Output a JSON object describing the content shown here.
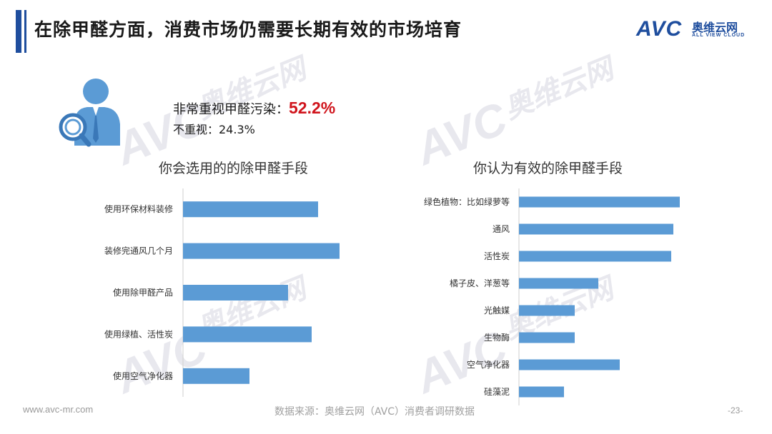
{
  "header": {
    "title": "在除甲醛方面，消费市场仍需要长期有效的市场培育"
  },
  "logo": {
    "brand": "AVC",
    "cn": "奥维云网",
    "en": "ALL VIEW CLOUD"
  },
  "stats": {
    "label1": "非常重视甲醛污染：",
    "value1": "52.2%",
    "label2": "不重视：24.3%"
  },
  "watermark": {
    "brand": "AVC",
    "cn": "奥维云网",
    "en": "ALL VIEW CLOUD"
  },
  "chart_data": [
    {
      "type": "bar",
      "orientation": "horizontal",
      "title": "你会选用的的除甲醛手段",
      "categories": [
        "使用环保材料装修",
        "装修完通风几个月",
        "使用除甲醛产品",
        "使用绿植、活性炭",
        "使用空气净化器"
      ],
      "values": [
        63,
        73,
        49,
        60,
        31
      ],
      "xlim": [
        0,
        80
      ],
      "color": "#5b9bd5",
      "grid": false
    },
    {
      "type": "bar",
      "orientation": "horizontal",
      "title": "你认为有效的除甲醛手段",
      "categories": [
        "绿色植物：比如绿萝等",
        "通风",
        "活性炭",
        "橘子皮、洋葱等",
        "光触媒",
        "生物酶",
        "空气净化器",
        "硅藻泥"
      ],
      "values": [
        75,
        72,
        71,
        37,
        26,
        26,
        47,
        21
      ],
      "xlim": [
        0,
        80
      ],
      "color": "#5b9bd5",
      "grid": false
    }
  ],
  "footer": {
    "url": "www.avc-mr.com",
    "source": "数据来源：奥维云网（AVC）消费者调研数据",
    "page": "-23-"
  }
}
